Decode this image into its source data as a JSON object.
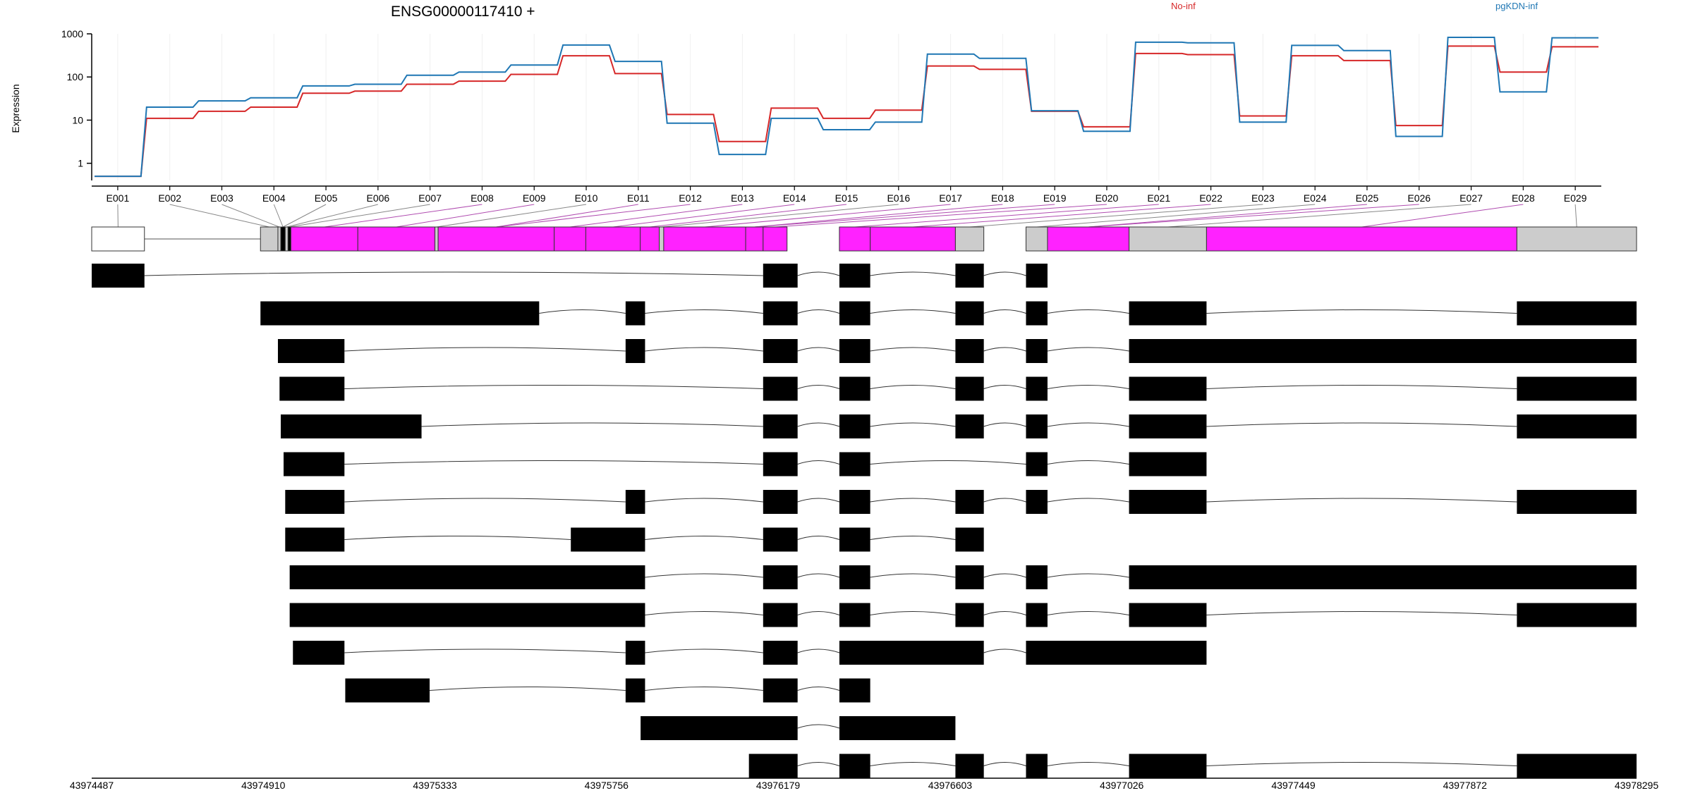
{
  "title": "ENSG00000117410 +",
  "legend": [
    {
      "label": "No-inf",
      "color": "#d62728"
    },
    {
      "label": "pgKDN-inf",
      "color": "#1f77b4"
    }
  ],
  "colors": {
    "exon_box": "#ff22ff",
    "exon_gray": "#cccccc",
    "transcript": "#000000"
  },
  "chart_data": [
    {
      "type": "line",
      "title": "ENSG00000117410 +",
      "ylabel": "Expression",
      "yscale": "log",
      "ylim": [
        0.4,
        1000
      ],
      "yticks": [
        "1",
        "10",
        "100",
        "1000"
      ],
      "categories": [
        "E001",
        "E002",
        "E003",
        "E004",
        "E005",
        "E006",
        "E007",
        "E008",
        "E009",
        "E010",
        "E011",
        "E012",
        "E013",
        "E014",
        "E015",
        "E016",
        "E017",
        "E018",
        "E019",
        "E020",
        "E021",
        "E022",
        "E023",
        "E024",
        "E025",
        "E026",
        "E027",
        "E028",
        "E029"
      ],
      "series": [
        {
          "name": "No-inf",
          "color": "#d62728",
          "values": [
            0.5,
            11,
            16,
            20,
            42,
            47,
            68,
            80,
            115,
            310,
            120,
            13.5,
            3.2,
            19,
            11,
            17,
            180,
            150,
            16,
            7,
            350,
            330,
            12.5,
            310,
            240,
            7.5,
            520,
            130,
            500
          ]
        },
        {
          "name": "pgKDN-inf",
          "color": "#1f77b4",
          "values": [
            0.5,
            20,
            28,
            33,
            62,
            68,
            110,
            130,
            190,
            550,
            230,
            8.5,
            1.6,
            11,
            6,
            9,
            340,
            270,
            16.5,
            5.5,
            640,
            620,
            9,
            540,
            410,
            4.2,
            830,
            45,
            810
          ]
        }
      ],
      "grid": true
    },
    {
      "type": "gene-structure",
      "xlim": [
        43974487,
        43978295
      ],
      "xticks": [
        "43974487",
        "43974910",
        "43975333",
        "43975756",
        "43976179",
        "43976603",
        "43977026",
        "43977449",
        "43977872",
        "43978295"
      ],
      "exon_bins": [
        [
          43974487,
          43974617
        ],
        [
          43974903,
          43974946
        ],
        [
          43974946,
          43974953
        ],
        [
          43974953,
          43974964
        ],
        [
          43974964,
          43974971
        ],
        [
          43974971,
          43974978
        ],
        [
          43974978,
          43975143
        ],
        [
          43975143,
          43975333
        ],
        [
          43975333,
          43975341
        ],
        [
          43975341,
          43975627
        ],
        [
          43975627,
          43975705
        ],
        [
          43975705,
          43975839
        ],
        [
          43975839,
          43975886
        ],
        [
          43975886,
          43975897
        ],
        [
          43975897,
          43976099
        ],
        [
          43976099,
          43976142
        ],
        [
          43976142,
          43976201
        ],
        [
          43976330,
          43976406
        ],
        [
          43976406,
          43976616
        ],
        [
          43976616,
          43976686
        ],
        [
          43976790,
          43976843
        ],
        [
          43976843,
          43977044
        ],
        [
          43977044,
          43977235
        ],
        [
          43977235,
          43978000
        ],
        [
          43978000,
          43978295
        ]
      ],
      "exon_bin_colors": [
        "white",
        "gray",
        "gray",
        "black",
        "gray",
        "black",
        "magenta",
        "magenta",
        "gray",
        "magenta",
        "magenta",
        "magenta",
        "magenta",
        "gray",
        "magenta",
        "magenta",
        "magenta",
        "magenta",
        "magenta",
        "gray",
        "gray",
        "magenta",
        "gray",
        "magenta",
        "gray"
      ],
      "transcripts": [
        [
          [
            43974487,
            43974617
          ],
          [
            43976142,
            43976227
          ],
          [
            43976330,
            43976406
          ],
          [
            43976616,
            43976686
          ],
          [
            43976790,
            43976843
          ]
        ],
        [
          [
            43974903,
            43975590
          ],
          [
            43975803,
            43975851
          ],
          [
            43976142,
            43976227
          ],
          [
            43976330,
            43976406
          ],
          [
            43976616,
            43976686
          ],
          [
            43976790,
            43976843
          ],
          [
            43977044,
            43977235
          ],
          [
            43978000,
            43978295
          ]
        ],
        [
          [
            43974946,
            43975110
          ],
          [
            43975803,
            43975851
          ],
          [
            43976142,
            43976227
          ],
          [
            43976330,
            43976406
          ],
          [
            43976616,
            43976686
          ],
          [
            43976790,
            43976843
          ],
          [
            43977044,
            43978295
          ]
        ],
        [
          [
            43974950,
            43975110
          ],
          [
            43976142,
            43976227
          ],
          [
            43976330,
            43976406
          ],
          [
            43976616,
            43976686
          ],
          [
            43976790,
            43976843
          ],
          [
            43977044,
            43977235
          ],
          [
            43978000,
            43978295
          ]
        ],
        [
          [
            43974953,
            43975300
          ],
          [
            43976142,
            43976227
          ],
          [
            43976330,
            43976406
          ],
          [
            43976616,
            43976686
          ],
          [
            43976790,
            43976843
          ],
          [
            43977044,
            43977235
          ],
          [
            43978000,
            43978295
          ]
        ],
        [
          [
            43974960,
            43975110
          ],
          [
            43976142,
            43976227
          ],
          [
            43976330,
            43976406
          ],
          [
            43976790,
            43976843
          ],
          [
            43977044,
            43977235
          ]
        ],
        [
          [
            43974964,
            43975110
          ],
          [
            43975803,
            43975851
          ],
          [
            43976142,
            43976227
          ],
          [
            43976330,
            43976406
          ],
          [
            43976616,
            43976686
          ],
          [
            43976790,
            43976843
          ],
          [
            43977044,
            43977235
          ],
          [
            43978000,
            43978295
          ]
        ],
        [
          [
            43974964,
            43975110
          ],
          [
            43975668,
            43975851
          ],
          [
            43976142,
            43976227
          ],
          [
            43976330,
            43976406
          ],
          [
            43976616,
            43976686
          ]
        ],
        [
          [
            43974975,
            43975851
          ],
          [
            43976142,
            43976227
          ],
          [
            43976330,
            43976406
          ],
          [
            43976616,
            43976686
          ],
          [
            43976790,
            43976843
          ],
          [
            43977044,
            43978295
          ]
        ],
        [
          [
            43974975,
            43975851
          ],
          [
            43976142,
            43976227
          ],
          [
            43976330,
            43976406
          ],
          [
            43976616,
            43976686
          ],
          [
            43976790,
            43976843
          ],
          [
            43977044,
            43977235
          ],
          [
            43978000,
            43978295
          ]
        ],
        [
          [
            43974983,
            43975110
          ],
          [
            43975803,
            43975851
          ],
          [
            43976142,
            43976227
          ],
          [
            43976330,
            43976686
          ],
          [
            43976790,
            43977235
          ]
        ],
        [
          [
            43975112,
            43975320
          ],
          [
            43975803,
            43975851
          ],
          [
            43976142,
            43976227
          ],
          [
            43976330,
            43976406
          ]
        ],
        [
          [
            43975840,
            43976227
          ],
          [
            43976330,
            43976616
          ]
        ],
        [
          [
            43976107,
            43976227
          ],
          [
            43976330,
            43976406
          ],
          [
            43976616,
            43976686
          ],
          [
            43976790,
            43976843
          ],
          [
            43977044,
            43977235
          ],
          [
            43978000,
            43978295
          ]
        ]
      ]
    }
  ]
}
